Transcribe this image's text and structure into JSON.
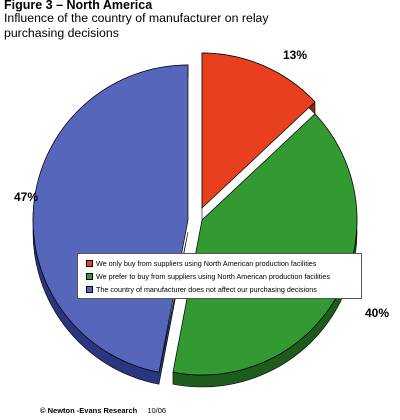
{
  "chart_data": {
    "type": "pie",
    "title": "Figure 3  – North America",
    "subtitle": "Influence of the country of manufacturer on relay purchasing decisions",
    "slices": [
      {
        "label": "We only buy from suppliers using North American production facilities",
        "value": 13,
        "value_label": "13%",
        "color": "#e8401e",
        "side_color": "#8f2512"
      },
      {
        "label": "We prefer to buy from suppliers using North American production facilities",
        "value": 40,
        "value_label": "40%",
        "color": "#339933",
        "side_color": "#1e5c1e"
      },
      {
        "label": "The country of manufacturer does not affect our purchasing decisions",
        "value": 47,
        "value_label": "47%",
        "color": "#5566bb",
        "side_color": "#2b3580"
      }
    ],
    "legend_position": "center-right overlay",
    "exploded_slices": [
      "13%",
      "47%"
    ]
  },
  "footer": {
    "copyright": "© Newton -Evans Research",
    "date": "10/06"
  }
}
